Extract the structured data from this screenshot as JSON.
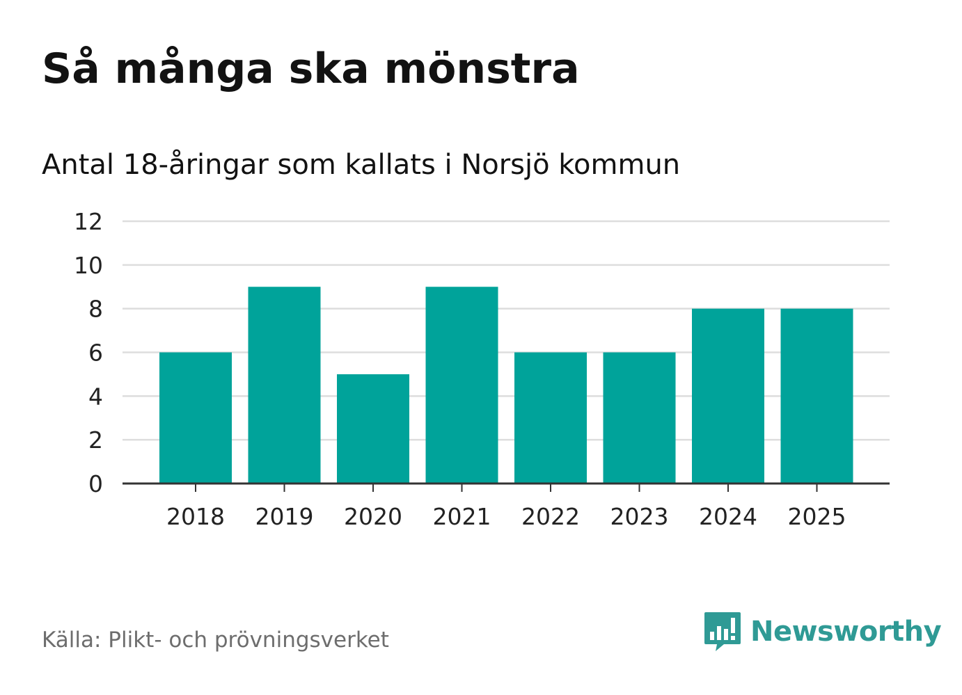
{
  "title": "Så många ska mönstra",
  "subtitle": "Antal 18-åringar som kallats i Norsjö kommun",
  "source": "Källa: Plikt- och prövningsverket",
  "brand": {
    "name": "Newsworthy",
    "icon": "newsworthy-logo-icon",
    "color": "#2f9a95"
  },
  "colors": {
    "bar": "#00a39a",
    "grid": "#dddddd",
    "axis": "#333333"
  },
  "chart_data": {
    "type": "bar",
    "title": "Så många ska mönstra",
    "subtitle": "Antal 18-åringar som kallats i Norsjö kommun",
    "categories": [
      "2018",
      "2019",
      "2020",
      "2021",
      "2022",
      "2023",
      "2024",
      "2025"
    ],
    "values": [
      6,
      9,
      5,
      9,
      6,
      6,
      8,
      8
    ],
    "xlabel": "",
    "ylabel": "",
    "ylim": [
      0,
      12
    ],
    "yticks": [
      0,
      2,
      4,
      6,
      8,
      10,
      12
    ],
    "grid": true,
    "legend": "none"
  }
}
